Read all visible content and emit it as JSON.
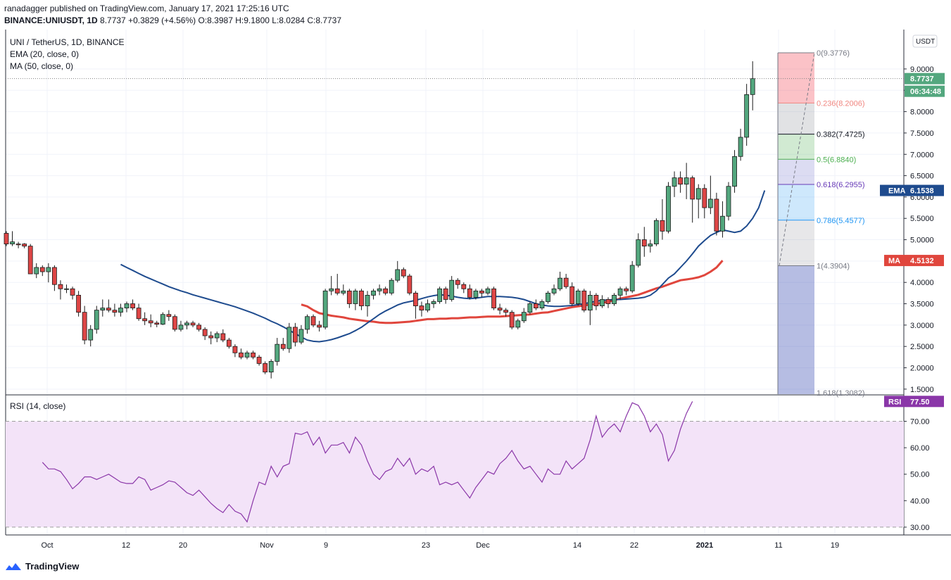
{
  "header": {
    "published": "ranadagger published on TradingView.com, January 17, 2021 17:25:16 UTC",
    "symbol": "BINANCE:UNIUSDT, 1D",
    "price": "8.7737",
    "change": "+0.3829 (+4.56%)",
    "ohlc": {
      "o": "O:8.3987",
      "h": "H:9.1800",
      "l": "L:8.0284",
      "c": "C:8.7737"
    }
  },
  "legend": {
    "title": "UNI / TetherUS, 1D, BINANCE",
    "ema": "EMA (20, close, 0)",
    "ma": "MA (50, close, 0)",
    "rsi": "RSI (14, close)"
  },
  "price_axis": {
    "currency": "USDT",
    "ticks": [
      "1.5000",
      "2.0000",
      "2.5000",
      "3.0000",
      "3.5000",
      "4.0000",
      "4.5000",
      "5.0000",
      "5.5000",
      "6.0000",
      "6.5000",
      "7.0000",
      "7.5000",
      "8.0000",
      "8.5000",
      "9.0000"
    ],
    "last_price": "8.7737",
    "countdown": "06:34:48",
    "ema_label": "EMA",
    "ema_value": "6.1538",
    "ma_label": "MA",
    "ma_value": "4.5132"
  },
  "rsi_axis": {
    "ticks": [
      "30.00",
      "40.00",
      "50.00",
      "60.00",
      "70.00"
    ],
    "label": "RSI",
    "value": "77.50"
  },
  "time_axis": [
    "Oct",
    "12",
    "20",
    "Nov",
    "9",
    "23",
    "Dec",
    "14",
    "22",
    "2021",
    "11",
    "19"
  ],
  "fib_labels": [
    "0(9.3776)",
    "0.236(8.2006)",
    "0.382(7.4725)",
    "0.5(6.8840)",
    "0.618(6.2955)",
    "0.786(5.4577)",
    "1(4.3904)",
    "1.618(1.3082)"
  ],
  "colors": {
    "up": "#53a77e",
    "down": "#de4646",
    "ema": "#1e4b8e",
    "ma": "#e0463d",
    "rsi_line": "#8a36a8",
    "rsi_band": "#f3e3f8",
    "grid": "#f0f3fa"
  },
  "chart_data": [
    {
      "type": "candlestick",
      "title": "UNI / TetherUS, 1D, BINANCE",
      "ylim": [
        1.2,
        9.6
      ],
      "x_start": "2020-09-22",
      "candles_ohlc": [
        [
          5.15,
          5.2,
          4.85,
          4.9
        ],
        [
          4.9,
          5.2,
          4.85,
          4.95
        ],
        [
          4.9,
          4.95,
          4.8,
          4.88
        ],
        [
          4.9,
          4.92,
          4.8,
          4.85
        ],
        [
          4.85,
          4.9,
          4.2,
          4.2
        ],
        [
          4.2,
          4.45,
          4.1,
          4.35
        ],
        [
          4.35,
          4.4,
          4.15,
          4.25
        ],
        [
          4.25,
          4.45,
          4.0,
          4.35
        ],
        [
          4.35,
          4.4,
          3.8,
          3.95
        ],
        [
          3.95,
          4.05,
          3.6,
          3.85
        ],
        [
          3.85,
          3.95,
          3.75,
          3.85
        ],
        [
          3.85,
          3.9,
          3.6,
          3.7
        ],
        [
          3.7,
          3.8,
          3.2,
          3.3
        ],
        [
          3.3,
          3.45,
          2.55,
          2.65
        ],
        [
          2.65,
          3.0,
          2.5,
          2.9
        ],
        [
          2.9,
          3.45,
          2.8,
          3.35
        ],
        [
          3.35,
          3.6,
          3.2,
          3.4
        ],
        [
          3.4,
          3.6,
          3.3,
          3.35
        ],
        [
          3.35,
          3.5,
          3.2,
          3.3
        ],
        [
          3.3,
          3.5,
          3.2,
          3.4
        ],
        [
          3.4,
          3.55,
          3.3,
          3.5
        ],
        [
          3.5,
          3.6,
          3.35,
          3.4
        ],
        [
          3.4,
          3.5,
          3.1,
          3.15
        ],
        [
          3.15,
          3.3,
          3.0,
          3.1
        ],
        [
          3.1,
          3.25,
          2.95,
          3.05
        ],
        [
          3.05,
          3.1,
          2.95,
          3.02
        ],
        [
          3.02,
          3.3,
          3.0,
          3.25
        ],
        [
          3.25,
          3.35,
          3.1,
          3.2
        ],
        [
          3.2,
          3.25,
          2.85,
          2.9
        ],
        [
          2.9,
          3.1,
          2.85,
          3.0
        ],
        [
          3.0,
          3.1,
          2.9,
          3.05
        ],
        [
          3.05,
          3.1,
          2.95,
          3.0
        ],
        [
          3.0,
          3.05,
          2.85,
          2.9
        ],
        [
          2.9,
          2.95,
          2.65,
          2.75
        ],
        [
          2.75,
          2.85,
          2.55,
          2.7
        ],
        [
          2.7,
          2.85,
          2.6,
          2.8
        ],
        [
          2.8,
          2.9,
          2.6,
          2.65
        ],
        [
          2.65,
          2.7,
          2.45,
          2.5
        ],
        [
          2.5,
          2.55,
          2.25,
          2.35
        ],
        [
          2.35,
          2.45,
          2.2,
          2.25
        ],
        [
          2.25,
          2.4,
          2.2,
          2.35
        ],
        [
          2.35,
          2.4,
          2.2,
          2.25
        ],
        [
          2.25,
          2.3,
          2.05,
          2.1
        ],
        [
          2.1,
          2.15,
          1.85,
          1.9
        ],
        [
          1.9,
          2.2,
          1.75,
          2.15
        ],
        [
          2.15,
          2.7,
          2.05,
          2.55
        ],
        [
          2.55,
          2.7,
          2.4,
          2.45
        ],
        [
          2.45,
          3.05,
          2.35,
          2.95
        ],
        [
          2.95,
          3.05,
          2.5,
          2.6
        ],
        [
          2.6,
          3.0,
          2.55,
          2.9
        ],
        [
          2.9,
          3.25,
          2.8,
          3.2
        ],
        [
          3.2,
          3.25,
          2.95,
          3.0
        ],
        [
          3.0,
          3.1,
          2.85,
          2.95
        ],
        [
          2.95,
          3.85,
          2.9,
          3.8
        ],
        [
          3.8,
          4.15,
          3.7,
          3.85
        ],
        [
          3.85,
          4.2,
          3.7,
          3.75
        ],
        [
          3.75,
          3.95,
          3.7,
          3.8
        ],
        [
          3.8,
          3.85,
          3.4,
          3.5
        ],
        [
          3.5,
          3.85,
          3.35,
          3.8
        ],
        [
          3.8,
          3.85,
          3.35,
          3.45
        ],
        [
          3.45,
          3.8,
          3.2,
          3.7
        ],
        [
          3.7,
          3.85,
          3.6,
          3.8
        ],
        [
          3.8,
          3.95,
          3.7,
          3.85
        ],
        [
          3.85,
          3.9,
          3.7,
          3.75
        ],
        [
          3.75,
          4.1,
          3.7,
          4.05
        ],
        [
          4.05,
          4.5,
          4.0,
          4.3
        ],
        [
          4.3,
          4.35,
          4.1,
          4.15
        ],
        [
          4.15,
          4.2,
          3.7,
          3.75
        ],
        [
          3.75,
          3.8,
          3.15,
          3.45
        ],
        [
          3.45,
          3.55,
          3.2,
          3.35
        ],
        [
          3.35,
          3.6,
          3.3,
          3.5
        ],
        [
          3.5,
          3.6,
          3.4,
          3.55
        ],
        [
          3.55,
          3.9,
          3.5,
          3.85
        ],
        [
          3.85,
          3.9,
          3.5,
          3.6
        ],
        [
          3.6,
          4.15,
          3.55,
          4.05
        ],
        [
          4.05,
          4.1,
          3.85,
          3.95
        ],
        [
          3.95,
          4.0,
          3.75,
          3.85
        ],
        [
          3.85,
          3.95,
          3.6,
          3.65
        ],
        [
          3.65,
          3.85,
          3.6,
          3.8
        ],
        [
          3.8,
          3.85,
          3.65,
          3.75
        ],
        [
          3.75,
          3.9,
          3.7,
          3.85
        ],
        [
          3.85,
          3.9,
          3.35,
          3.4
        ],
        [
          3.4,
          3.5,
          3.25,
          3.35
        ],
        [
          3.35,
          3.4,
          3.2,
          3.3
        ],
        [
          3.3,
          3.35,
          2.9,
          2.95
        ],
        [
          2.95,
          3.15,
          2.9,
          3.1
        ],
        [
          3.1,
          3.4,
          3.05,
          3.3
        ],
        [
          3.3,
          3.55,
          3.25,
          3.5
        ],
        [
          3.5,
          3.6,
          3.35,
          3.4
        ],
        [
          3.4,
          3.6,
          3.35,
          3.55
        ],
        [
          3.55,
          3.8,
          3.5,
          3.75
        ],
        [
          3.75,
          3.95,
          3.7,
          3.85
        ],
        [
          3.85,
          4.25,
          3.8,
          4.1
        ],
        [
          4.1,
          4.2,
          3.85,
          3.9
        ],
        [
          3.9,
          4.0,
          3.45,
          3.5
        ],
        [
          3.5,
          3.85,
          3.45,
          3.8
        ],
        [
          3.8,
          3.85,
          3.3,
          3.35
        ],
        [
          3.35,
          3.8,
          3.0,
          3.7
        ],
        [
          3.7,
          3.75,
          3.35,
          3.45
        ],
        [
          3.45,
          3.7,
          3.4,
          3.6
        ],
        [
          3.6,
          3.65,
          3.4,
          3.5
        ],
        [
          3.5,
          3.75,
          3.45,
          3.7
        ],
        [
          3.7,
          3.9,
          3.6,
          3.85
        ],
        [
          3.85,
          3.9,
          3.7,
          3.8
        ],
        [
          3.8,
          4.5,
          3.75,
          4.4
        ],
        [
          4.4,
          5.15,
          4.35,
          5.0
        ],
        [
          5.0,
          5.3,
          4.6,
          4.85
        ],
        [
          4.85,
          5.0,
          4.7,
          4.9
        ],
        [
          4.9,
          5.5,
          4.85,
          5.45
        ],
        [
          5.45,
          5.95,
          5.0,
          5.2
        ],
        [
          5.2,
          6.35,
          5.15,
          6.25
        ],
        [
          6.25,
          6.6,
          6.0,
          6.45
        ],
        [
          6.45,
          6.6,
          6.1,
          6.3
        ],
        [
          6.3,
          6.8,
          5.95,
          6.45
        ],
        [
          6.45,
          6.5,
          5.4,
          5.95
        ],
        [
          5.95,
          6.3,
          5.5,
          6.2
        ],
        [
          6.2,
          6.3,
          5.5,
          5.75
        ],
        [
          5.75,
          6.5,
          5.6,
          5.95
        ],
        [
          5.95,
          6.1,
          5.1,
          5.2
        ],
        [
          5.2,
          5.9,
          5.05,
          5.55
        ],
        [
          5.55,
          6.35,
          5.45,
          6.25
        ],
        [
          6.25,
          7.1,
          6.1,
          6.95
        ],
        [
          6.95,
          7.6,
          6.85,
          7.4
        ],
        [
          7.4,
          8.65,
          7.2,
          8.4
        ],
        [
          8.4,
          9.18,
          8.03,
          8.7737
        ]
      ],
      "ema20_start_index": 19,
      "ema20": [
        4.42,
        4.35,
        4.28,
        4.21,
        4.14,
        4.08,
        4.02,
        3.96,
        3.9,
        3.85,
        3.8,
        3.76,
        3.71,
        3.67,
        3.63,
        3.59,
        3.55,
        3.51,
        3.47,
        3.43,
        3.38,
        3.33,
        3.28,
        3.22,
        3.16,
        3.09,
        3.03,
        2.96,
        2.88,
        2.8,
        2.72,
        2.65,
        2.62,
        2.61,
        2.63,
        2.66,
        2.7,
        2.75,
        2.8,
        2.87,
        2.95,
        3.05,
        3.15,
        3.25,
        3.33,
        3.4,
        3.47,
        3.52,
        3.55,
        3.58,
        3.62,
        3.66,
        3.69,
        3.71,
        3.7,
        3.68,
        3.65,
        3.63,
        3.62,
        3.63,
        3.65,
        3.67,
        3.67,
        3.67,
        3.66,
        3.65,
        3.63,
        3.6,
        3.55,
        3.5,
        3.47,
        3.45,
        3.44,
        3.44,
        3.45,
        3.46,
        3.48,
        3.5,
        3.53,
        3.56,
        3.58,
        3.59,
        3.6,
        3.6,
        3.61,
        3.62,
        3.63,
        3.65,
        3.7,
        3.8,
        3.95,
        4.1,
        4.2,
        4.35,
        4.5,
        4.67,
        4.85,
        4.98,
        5.1,
        5.17,
        5.23,
        5.2,
        5.17,
        5.2,
        5.32,
        5.5,
        5.75,
        6.1538
      ],
      "ma50_start_index": 49,
      "ma50": [
        3.48,
        3.44,
        3.35,
        3.28,
        3.25,
        3.22,
        3.2,
        3.18,
        3.15,
        3.13,
        3.11,
        3.09,
        3.08,
        3.06,
        3.05,
        3.05,
        3.06,
        3.07,
        3.08,
        3.1,
        3.12,
        3.14,
        3.14,
        3.15,
        3.15,
        3.16,
        3.16,
        3.17,
        3.18,
        3.18,
        3.19,
        3.2,
        3.2,
        3.2,
        3.21,
        3.22,
        3.23,
        3.24,
        3.25,
        3.27,
        3.29,
        3.3,
        3.33,
        3.36,
        3.39,
        3.42,
        3.44,
        3.46,
        3.48,
        3.5,
        3.52,
        3.55,
        3.58,
        3.62,
        3.65,
        3.68,
        3.71,
        3.76,
        3.81,
        3.86,
        3.9,
        3.95,
        4.0,
        4.05,
        4.07,
        4.09,
        4.12,
        4.17,
        4.25,
        4.35,
        4.5132
      ]
    },
    {
      "type": "line",
      "title": "RSI (14, close)",
      "ylim": [
        27,
        79
      ],
      "overbought": 70,
      "oversold": 30,
      "rsi_start_index": 6,
      "rsi": [
        54.5,
        52,
        52,
        51,
        48,
        44.5,
        46.5,
        49,
        49,
        48,
        49,
        50,
        48.5,
        47,
        46.5,
        46.5,
        49,
        48,
        44,
        45,
        46,
        47.5,
        47,
        45,
        43,
        42,
        44,
        41.5,
        39,
        37,
        35.5,
        38.5,
        36,
        35,
        32,
        40,
        47,
        46,
        53,
        49,
        53,
        54,
        65.5,
        65,
        66,
        61,
        64,
        58,
        61,
        61,
        62,
        58,
        64,
        61,
        55,
        50,
        48,
        51,
        52,
        56,
        53,
        56,
        50,
        52,
        51,
        53,
        46,
        47,
        46,
        47,
        44,
        41,
        45,
        48,
        51,
        50,
        54,
        56,
        59,
        55,
        52,
        53,
        50,
        47,
        52,
        50,
        50,
        55,
        52,
        54,
        56,
        63,
        72,
        64,
        67,
        69,
        66,
        72,
        77,
        76,
        72,
        66,
        69,
        65,
        55,
        59,
        67,
        73,
        77.5
      ]
    },
    {
      "type": "fibonacci",
      "title": "Fib retracement",
      "levels": [
        {
          "ratio": "0",
          "price": 9.3776
        },
        {
          "ratio": "0.236",
          "price": 8.2006
        },
        {
          "ratio": "0.382",
          "price": 7.4725
        },
        {
          "ratio": "0.5",
          "price": 6.884
        },
        {
          "ratio": "0.618",
          "price": 6.2955
        },
        {
          "ratio": "0.786",
          "price": 5.4577
        },
        {
          "ratio": "1",
          "price": 4.3904
        },
        {
          "ratio": "1.618",
          "price": 1.3082
        }
      ]
    }
  ]
}
